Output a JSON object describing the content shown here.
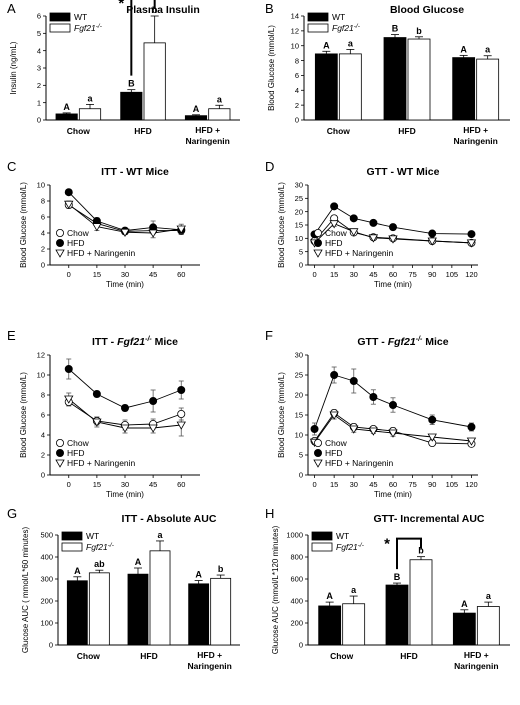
{
  "chart_data": [
    {
      "panel": "A",
      "type": "bar",
      "title": "Plasma Insulin",
      "ylabel": "Insulin (ng/mL)",
      "ylim": [
        0,
        6
      ],
      "yticks": [
        0,
        1,
        2,
        3,
        4,
        5,
        6
      ],
      "categories": [
        "Chow",
        "HFD",
        "HFD + Naringenin"
      ],
      "series": [
        {
          "name": "WT",
          "italic": false,
          "fill": "#000000",
          "values": [
            0.35,
            1.6,
            0.25
          ],
          "errors": [
            0.06,
            0.15,
            0.05
          ],
          "letters": [
            "A",
            "B",
            "A"
          ]
        },
        {
          "name": "Fgf21-/-",
          "italic": true,
          "fill": "#ffffff",
          "values": [
            0.65,
            4.45,
            0.65
          ],
          "errors": [
            0.25,
            1.55,
            0.2
          ],
          "letters": [
            "a",
            "b",
            "a"
          ]
        }
      ],
      "star_category": 1
    },
    {
      "panel": "B",
      "type": "bar",
      "title": "Blood Glucose",
      "ylabel": "Blood Glucose (mmol/L)",
      "ylim": [
        0,
        14
      ],
      "yticks": [
        0,
        2,
        4,
        6,
        8,
        10,
        12,
        14
      ],
      "categories": [
        "Chow",
        "HFD",
        "HFD + Naringenin"
      ],
      "series": [
        {
          "name": "WT",
          "italic": false,
          "fill": "#000000",
          "values": [
            8.9,
            11.1,
            8.4
          ],
          "errors": [
            0.35,
            0.4,
            0.3
          ],
          "letters": [
            "A",
            "B",
            "A"
          ]
        },
        {
          "name": "Fgf21-/-",
          "italic": true,
          "fill": "#ffffff",
          "values": [
            8.9,
            10.9,
            8.2
          ],
          "errors": [
            0.6,
            0.3,
            0.45
          ],
          "letters": [
            "a",
            "b",
            "a"
          ]
        }
      ]
    },
    {
      "panel": "C",
      "type": "line",
      "title": "ITT - WT Mice",
      "xlabel": "Time (min)",
      "ylabel": "Blood Glucose (mmol/L)",
      "xlim": [
        -10,
        70
      ],
      "xticks": [
        0,
        15,
        30,
        45,
        60
      ],
      "ylim": [
        0,
        10
      ],
      "yticks": [
        0,
        2,
        4,
        6,
        8,
        10
      ],
      "series": [
        {
          "name": "Chow",
          "marker": "circle-open",
          "x": [
            0,
            15,
            30,
            45,
            60
          ],
          "y": [
            7.5,
            5.2,
            4.2,
            4.3,
            4.3
          ],
          "err": [
            0.4,
            0.4,
            0.3,
            0.4,
            0.5
          ]
        },
        {
          "name": "HFD",
          "marker": "circle-filled",
          "x": [
            0,
            15,
            30,
            45,
            60
          ],
          "y": [
            9.1,
            5.5,
            4.3,
            4.7,
            4.4
          ],
          "err": [
            0.3,
            0.4,
            0.3,
            0.8,
            0.4
          ]
        },
        {
          "name": "HFD + Naringenin",
          "marker": "triangle-open",
          "x": [
            0,
            15,
            30,
            45,
            60
          ],
          "y": [
            7.6,
            4.8,
            4.1,
            4.0,
            4.5
          ],
          "err": [
            0.4,
            0.5,
            0.3,
            0.6,
            0.6
          ]
        }
      ]
    },
    {
      "panel": "D",
      "type": "line",
      "title": "GTT  - WT Mice",
      "xlabel": "Time (min)",
      "ylabel": "Blood Glucose (mmol/L)",
      "xlim": [
        -5,
        125
      ],
      "xticks": [
        0,
        15,
        30,
        45,
        60,
        75,
        90,
        105,
        120
      ],
      "ylim": [
        0,
        30
      ],
      "yticks": [
        0,
        5,
        10,
        15,
        20,
        25,
        30
      ],
      "series": [
        {
          "name": "Chow",
          "marker": "circle-open",
          "x": [
            0,
            15,
            30,
            45,
            60,
            90,
            120
          ],
          "y": [
            9,
            17.5,
            12.2,
            10.4,
            10,
            9,
            8.3
          ],
          "err": [
            0.8,
            1,
            0.8,
            0.5,
            0.5,
            0.5,
            0.4
          ]
        },
        {
          "name": "HFD",
          "marker": "circle-filled",
          "x": [
            0,
            15,
            30,
            45,
            60,
            90,
            120
          ],
          "y": [
            11.5,
            22,
            17.5,
            15.8,
            14.2,
            11.8,
            11.6
          ],
          "err": [
            0.6,
            0.9,
            0.8,
            0.6,
            0.6,
            0.5,
            0.5
          ]
        },
        {
          "name": "HFD + Naringenin",
          "marker": "triangle-open",
          "x": [
            0,
            15,
            30,
            45,
            60,
            90,
            120
          ],
          "y": [
            8.3,
            15.5,
            12.5,
            10.2,
            9.8,
            9.0,
            8.3
          ],
          "err": [
            0.5,
            1,
            0.8,
            0.5,
            0.5,
            0.5,
            0.4
          ]
        }
      ]
    },
    {
      "panel": "E",
      "type": "line",
      "title": "ITT - Fgf21-/- Mice",
      "title_prefix": "ITT - ",
      "title_italic": "Fgf21-/-",
      "title_suffix": " Mice",
      "xlabel": "Time (min)",
      "ylabel": "Blood Glucose (mmol/L)",
      "xlim": [
        -10,
        70
      ],
      "xticks": [
        0,
        15,
        30,
        45,
        60
      ],
      "ylim": [
        0,
        12
      ],
      "yticks": [
        0,
        2,
        4,
        6,
        8,
        10,
        12
      ],
      "series": [
        {
          "name": "Chow",
          "marker": "circle-open",
          "x": [
            0,
            15,
            30,
            45,
            60
          ],
          "y": [
            7.3,
            5.4,
            5.0,
            5.1,
            6.1
          ],
          "err": [
            0.4,
            0.4,
            0.5,
            0.5,
            0.6
          ]
        },
        {
          "name": "HFD",
          "marker": "circle-filled",
          "x": [
            0,
            15,
            30,
            45,
            60
          ],
          "y": [
            10.6,
            8.1,
            6.7,
            7.4,
            8.5
          ],
          "err": [
            1.0,
            0.3,
            0.3,
            1.1,
            0.9
          ]
        },
        {
          "name": "HFD + Naringenin",
          "marker": "triangle-open",
          "x": [
            0,
            15,
            30,
            45,
            60
          ],
          "y": [
            7.6,
            5.3,
            4.7,
            4.7,
            5.0
          ],
          "err": [
            0.6,
            0.5,
            0.5,
            0.5,
            1.1
          ]
        }
      ]
    },
    {
      "panel": "F",
      "type": "line",
      "title": "GTT - Fgf21-/- Mice",
      "title_prefix": "GTT - ",
      "title_italic": "Fgf21-/-",
      "title_suffix": " Mice",
      "xlabel": "Time (min)",
      "ylabel": "Blood Glucose (mmol/L)",
      "xlim": [
        -5,
        125
      ],
      "xticks": [
        0,
        15,
        30,
        45,
        60,
        75,
        90,
        105,
        120
      ],
      "ylim": [
        0,
        30
      ],
      "yticks": [
        0,
        5,
        10,
        15,
        20,
        25,
        30
      ],
      "series": [
        {
          "name": "Chow",
          "marker": "circle-open",
          "x": [
            0,
            15,
            30,
            45,
            60,
            90,
            120
          ],
          "y": [
            8.5,
            15.5,
            12,
            11.5,
            11,
            8,
            7.8
          ],
          "err": [
            0.6,
            0.8,
            0.8,
            0.6,
            0.8,
            0.5,
            0.5
          ]
        },
        {
          "name": "HFD",
          "marker": "circle-filled",
          "x": [
            0,
            15,
            30,
            45,
            60,
            90,
            120
          ],
          "y": [
            11.5,
            25,
            23.5,
            19.5,
            17.5,
            13.8,
            12
          ],
          "err": [
            1.5,
            2,
            3,
            1.8,
            1.8,
            1.2,
            1
          ]
        },
        {
          "name": "HFD + Naringenin",
          "marker": "triangle-open",
          "x": [
            0,
            15,
            30,
            45,
            60,
            90,
            120
          ],
          "y": [
            8.2,
            15,
            11.5,
            11,
            10.5,
            9.5,
            8.5
          ],
          "err": [
            0.6,
            1,
            0.8,
            0.6,
            0.8,
            0.5,
            0.5
          ]
        }
      ]
    },
    {
      "panel": "G",
      "type": "bar",
      "title": "ITT - Absolute AUC",
      "ylabel": "Glucose AUC ( mmol/L*60 minutes)",
      "ylim": [
        0,
        500
      ],
      "yticks": [
        0,
        100,
        200,
        300,
        400,
        500
      ],
      "categories": [
        "Chow",
        "HFD",
        "HFD + Naringenin"
      ],
      "series": [
        {
          "name": "WT",
          "italic": false,
          "fill": "#000000",
          "values": [
            292,
            322,
            278
          ],
          "errors": [
            18,
            28,
            15
          ],
          "letters": [
            "A",
            "A",
            "A"
          ]
        },
        {
          "name": "Fgf21-/-",
          "italic": true,
          "fill": "#ffffff",
          "values": [
            328,
            428,
            303
          ],
          "errors": [
            12,
            45,
            15
          ],
          "letters": [
            "ab",
            "a",
            "b"
          ]
        }
      ]
    },
    {
      "panel": "H",
      "type": "bar",
      "title": "GTT- Incremental AUC",
      "ylabel": "Glucose AUC (mmol/L*120 minutes)",
      "ylim": [
        0,
        1000
      ],
      "yticks": [
        0,
        200,
        400,
        600,
        800,
        1000
      ],
      "categories": [
        "Chow",
        "HFD",
        "HFD + Naringenin"
      ],
      "series": [
        {
          "name": "WT",
          "italic": false,
          "fill": "#000000",
          "values": [
            355,
            545,
            290
          ],
          "errors": [
            35,
            18,
            30
          ],
          "letters": [
            "A",
            "B",
            "A"
          ]
        },
        {
          "name": "Fgf21-/-",
          "italic": true,
          "fill": "#ffffff",
          "values": [
            375,
            775,
            350
          ],
          "errors": [
            70,
            28,
            40
          ],
          "letters": [
            "a",
            "b",
            "a"
          ]
        }
      ],
      "star_category": 1
    }
  ]
}
